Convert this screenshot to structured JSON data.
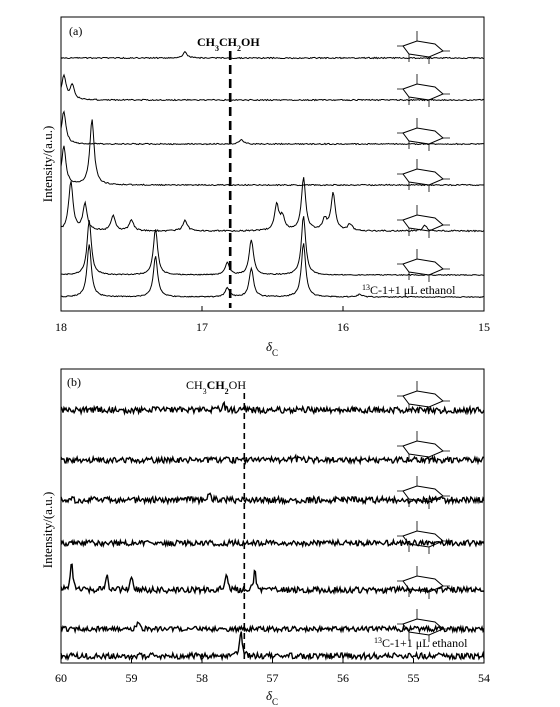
{
  "chart_data": [
    {
      "panel_label": "(a)",
      "type": "line",
      "x_reversed": true,
      "xlim": [
        18,
        15
      ],
      "xticks": [
        "18",
        "17",
        "16",
        "15"
      ],
      "xticks_values": [
        18,
        17,
        16,
        15
      ],
      "xlabel_main": "δ",
      "xlabel_sub": "C",
      "ylabel": "Intensity/(a.u.)",
      "marker_label": "CH3CH2OH",
      "marker_x": 16.8,
      "bottom_trace_label": "13C-1+1 μL ethanol",
      "series": [
        {
          "peaks": [
            [
              17.12,
              0.55
            ]
          ]
        },
        {
          "peaks": [
            [
              17.92,
              1.3
            ],
            [
              17.98,
              2.2
            ]
          ]
        },
        {
          "peaks": [
            [
              17.98,
              3.0
            ],
            [
              16.72,
              0.4
            ]
          ]
        },
        {
          "peaks": [
            [
              17.78,
              6.0
            ],
            [
              17.98,
              3.5
            ]
          ]
        },
        {
          "peaks": [
            [
              17.93,
              4.5
            ],
            [
              17.83,
              2.4
            ],
            [
              17.63,
              1.4
            ],
            [
              17.5,
              1.0
            ],
            [
              17.12,
              1.0
            ],
            [
              16.47,
              2.3
            ],
            [
              16.43,
              1.2
            ],
            [
              16.28,
              4.8
            ],
            [
              16.13,
              1.0
            ],
            [
              16.07,
              3.4
            ],
            [
              15.95,
              0.6
            ],
            [
              15.42,
              0.5
            ]
          ]
        },
        {
          "peaks": [
            [
              17.8,
              5.0
            ],
            [
              17.33,
              4.2
            ],
            [
              16.82,
              1.1
            ],
            [
              16.65,
              3.2
            ],
            [
              16.28,
              5.4
            ]
          ]
        },
        {
          "peaks": [
            [
              17.8,
              4.8
            ],
            [
              17.33,
              3.7
            ],
            [
              16.82,
              0.8
            ],
            [
              16.65,
              2.6
            ],
            [
              16.28,
              4.9
            ],
            [
              15.88,
              0.25
            ]
          ]
        }
      ]
    },
    {
      "panel_label": "(b)",
      "type": "line",
      "x_reversed": true,
      "xlim": [
        60,
        54
      ],
      "xticks": [
        "60",
        "59",
        "58",
        "57",
        "56",
        "55",
        "54"
      ],
      "xticks_values": [
        60,
        59,
        58,
        57,
        56,
        55,
        54
      ],
      "xlabel_main": "δ",
      "xlabel_sub": "C",
      "ylabel": "Intensity/(a.u.)",
      "marker_label": "CH3CH2OH",
      "marker_x": 57.4,
      "bottom_trace_label": "13C-1+1 μL ethanol",
      "series": [
        {
          "peaks": [
            [
              57.7,
              0.8
            ]
          ]
        },
        {
          "peaks": [
            [
              56.7,
              0.5
            ]
          ]
        },
        {
          "peaks": [
            [
              57.9,
              0.8
            ]
          ]
        },
        {
          "peaks": []
        },
        {
          "peaks": [
            [
              59.85,
              3.0
            ],
            [
              59.35,
              1.7
            ],
            [
              59.0,
              1.3
            ],
            [
              57.65,
              2.0
            ],
            [
              57.25,
              2.1
            ]
          ]
        },
        {
          "peaks": [
            [
              58.9,
              0.8
            ]
          ]
        },
        {
          "peaks": [
            [
              57.45,
              2.8
            ]
          ]
        }
      ]
    }
  ]
}
